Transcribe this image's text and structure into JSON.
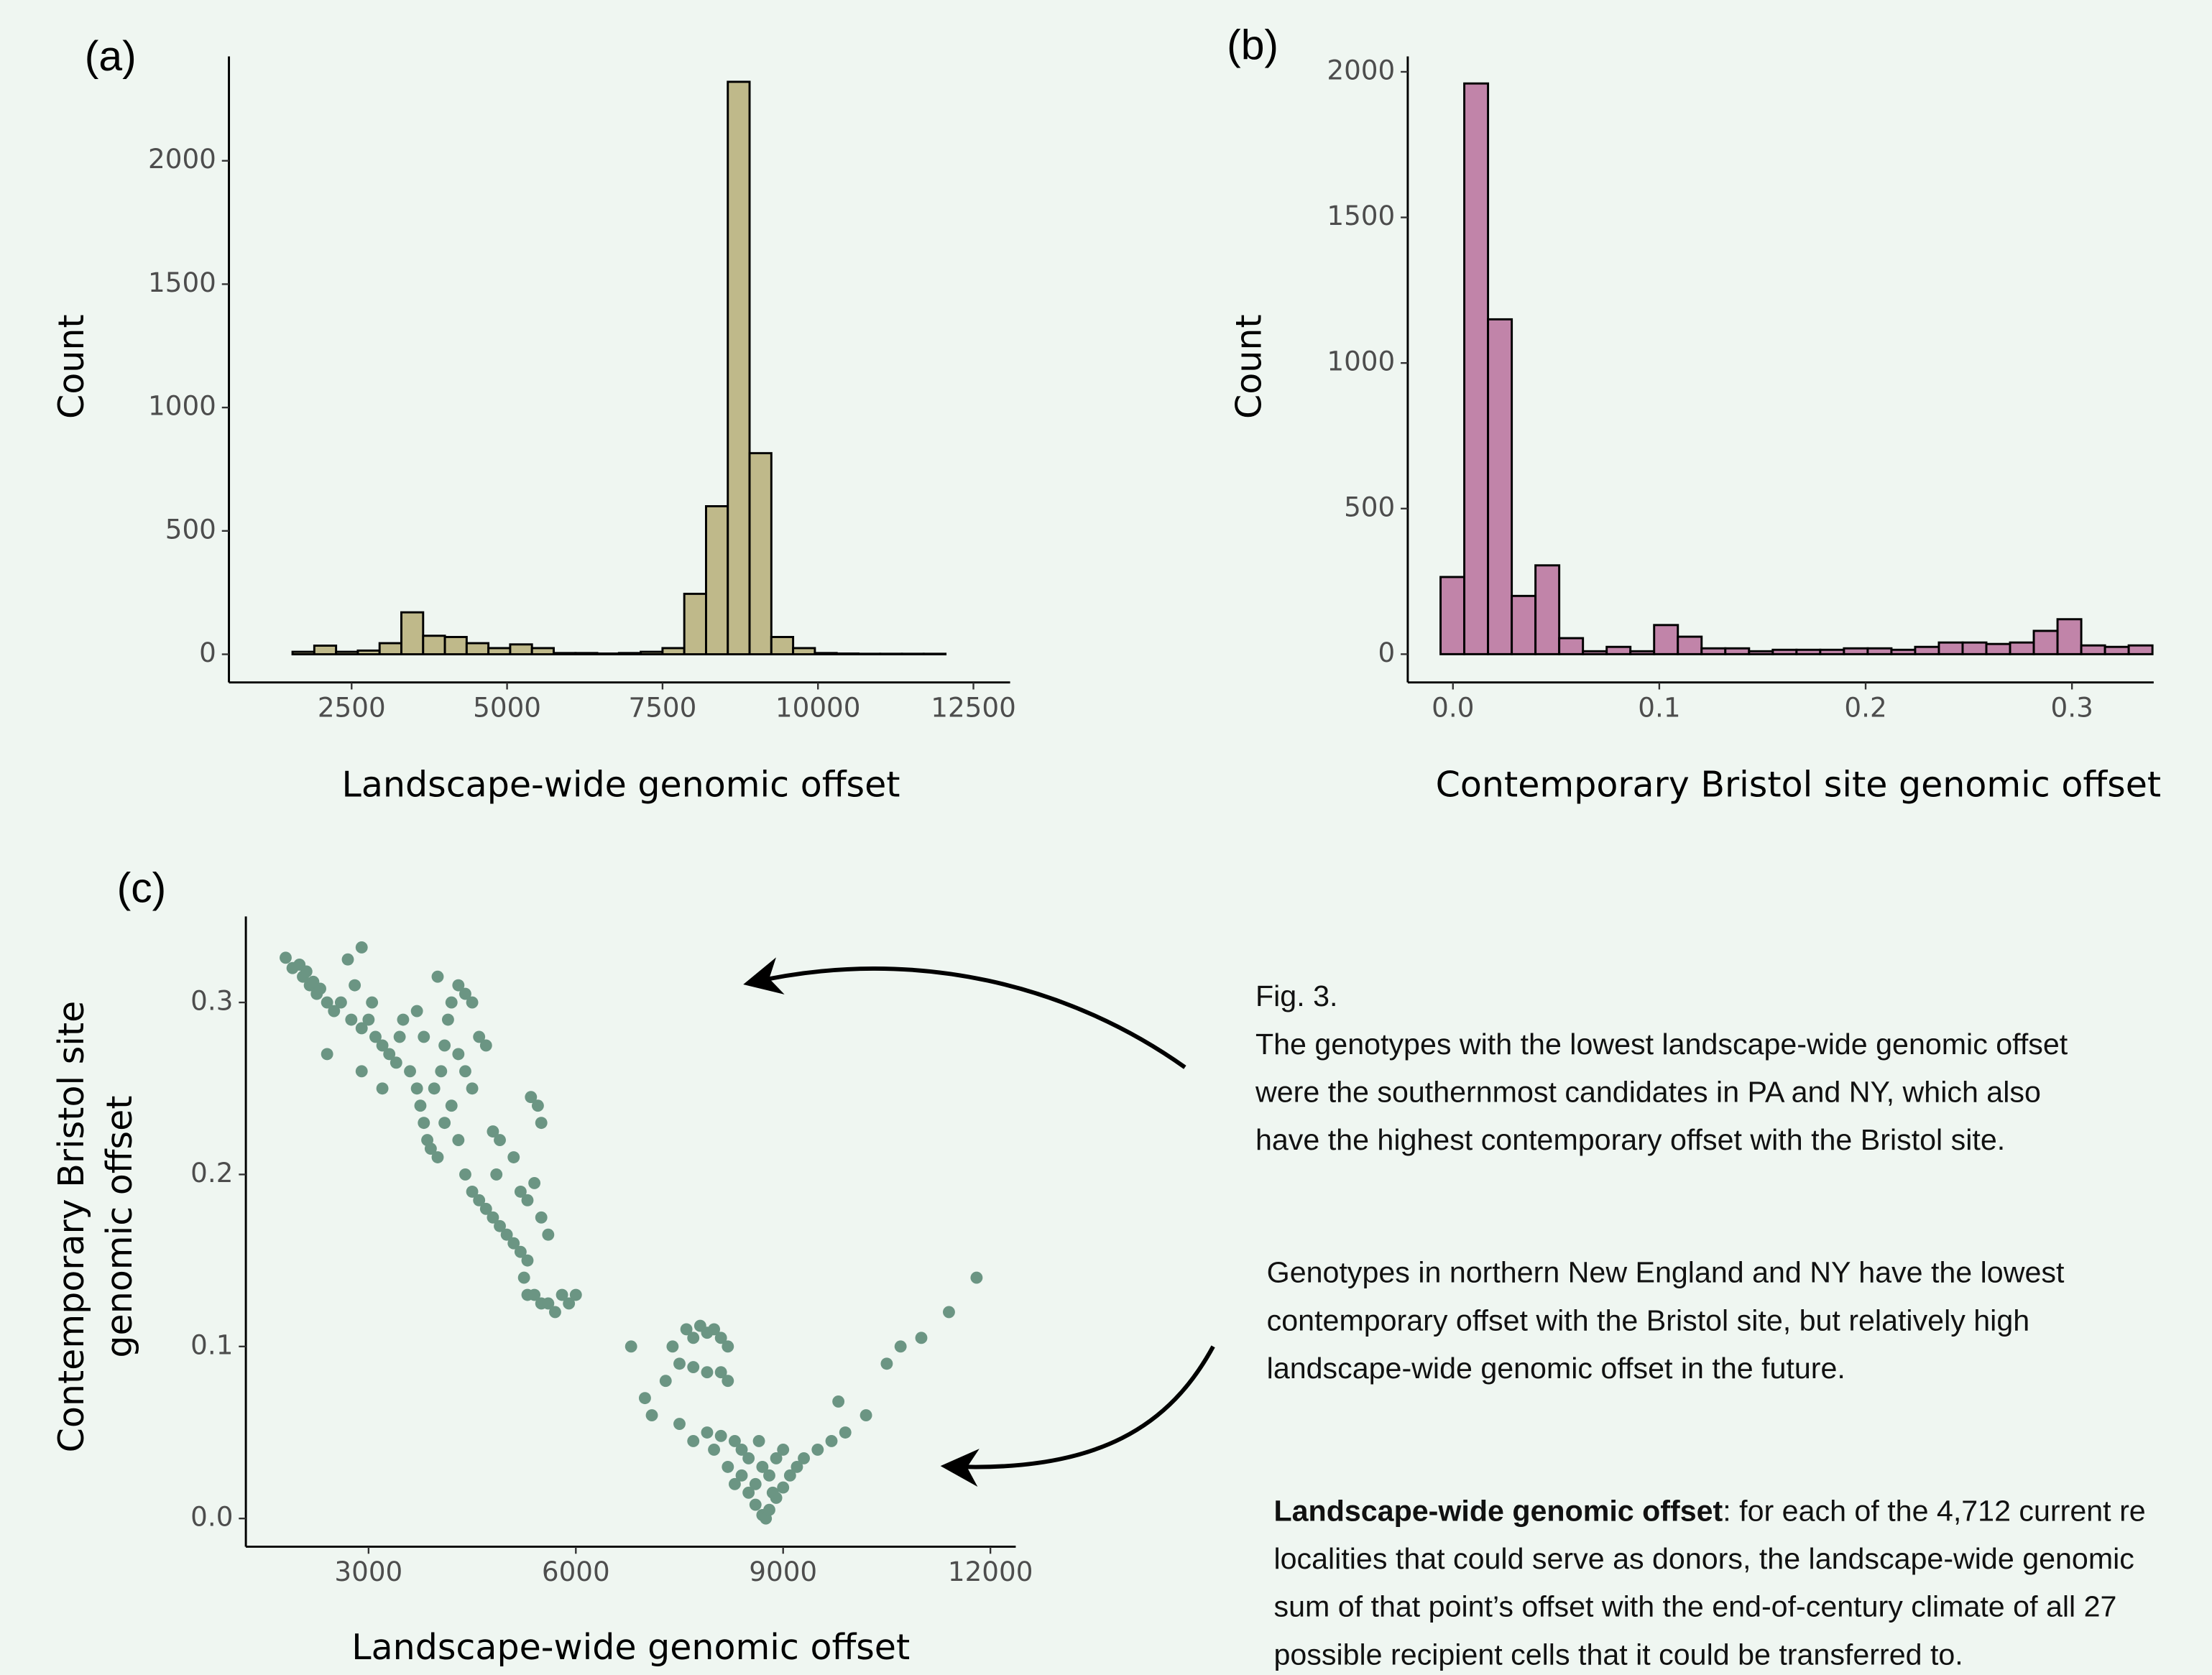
{
  "chart_data": [
    {
      "type": "histogram",
      "panel_label": "(a)",
      "xlabel": "Landscape-wide genomic offset",
      "ylabel": "Count",
      "color": "#bfb98a",
      "bins": [
        1550,
        1900,
        2250,
        2600,
        2950,
        3300,
        3650,
        4000,
        4350,
        4700,
        5050,
        5400,
        5750,
        6100,
        6450,
        6800,
        7150,
        7500,
        7850,
        8200,
        8550,
        8900,
        9250,
        9600,
        9950,
        10300,
        10650,
        11000,
        11350,
        11700,
        12050
      ],
      "counts": [
        10,
        35,
        10,
        15,
        45,
        170,
        75,
        70,
        45,
        25,
        40,
        25,
        5,
        5,
        3,
        5,
        10,
        25,
        245,
        600,
        2320,
        815,
        70,
        25,
        5,
        3,
        2,
        2,
        2,
        2
      ],
      "xlim": [
        527,
        13090
      ],
      "ylim": [
        -114,
        2423
      ],
      "xticks": [
        2500,
        5000,
        7500,
        10000,
        12500
      ],
      "yticks": [
        0,
        500,
        1000,
        1500,
        2000
      ]
    },
    {
      "type": "histogram",
      "panel_label": "(b)",
      "xlabel": "Contemporary Bristol site genomic offset",
      "ylabel": "Count",
      "color": "#c184a9",
      "bins": [
        -0.006,
        0.0055,
        0.017,
        0.0285,
        0.04,
        0.0515,
        0.063,
        0.0745,
        0.086,
        0.0975,
        0.109,
        0.1205,
        0.132,
        0.1435,
        0.155,
        0.1665,
        0.178,
        0.1895,
        0.201,
        0.2125,
        0.224,
        0.2355,
        0.247,
        0.2585,
        0.27,
        0.2815,
        0.293,
        0.3045,
        0.316,
        0.3275,
        0.339
      ],
      "counts": [
        265,
        1960,
        1150,
        200,
        305,
        55,
        10,
        25,
        10,
        100,
        60,
        20,
        20,
        10,
        15,
        15,
        15,
        20,
        20,
        15,
        25,
        40,
        40,
        35,
        40,
        80,
        120,
        30,
        25,
        30
      ],
      "xlim": [
        -0.0219,
        0.3396
      ],
      "ylim": [
        -97,
        2053
      ],
      "xticks": [
        {
          "value": 0,
          "label": "0.0"
        },
        0.1,
        0.2,
        0.3
      ],
      "yticks": [
        0,
        500,
        1000,
        1500,
        2000
      ]
    },
    {
      "type": "scatter",
      "panel_label": "(c)",
      "xlabel": "Landscape-wide genomic offset",
      "ylabel": [
        "Contemporary Bristol site",
        "genomic offset"
      ],
      "color": "#6b9583",
      "x": [
        1800,
        1900,
        2000,
        2050,
        2100,
        2150,
        2200,
        2250,
        2300,
        2400,
        2500,
        2600,
        2700,
        2900,
        2800,
        2750,
        2900,
        3000,
        3100,
        3050,
        3200,
        3300,
        3400,
        3450,
        3500,
        3600,
        3700,
        3750,
        3800,
        3850,
        3900,
        4000,
        3950,
        4050,
        4100,
        4150,
        4200,
        4000,
        4300,
        4400,
        4500,
        4600,
        4700,
        4300,
        4400,
        4500,
        4200,
        4100,
        4300,
        4400,
        4500,
        4600,
        4700,
        4800,
        4900,
        5000,
        5100,
        5200,
        5300,
        5250,
        5300,
        5400,
        5500,
        5600,
        5700,
        5800,
        5900,
        6000,
        5100,
        5200,
        5300,
        5400,
        5500,
        5600,
        5350,
        5450,
        5500,
        4800,
        4900,
        4850,
        3700,
        3800,
        2400,
        2900,
        3200,
        6800,
        7000,
        7100,
        7400,
        7600,
        7700,
        7800,
        7900,
        8000,
        8100,
        8200,
        7500,
        7700,
        7900,
        8100,
        8200,
        7300,
        7500,
        7700,
        7900,
        8100,
        8300,
        8000,
        8200,
        8400,
        8500,
        8600,
        8700,
        8750,
        8800,
        8900,
        9000,
        9100,
        9200,
        9300,
        9500,
        9700,
        9900,
        8600,
        8700,
        8800,
        8900,
        8400,
        8300,
        8500,
        9000,
        9800,
        10200,
        10500,
        10700,
        11000,
        11400,
        11800,
        8650,
        8850
      ],
      "y": [
        0.326,
        0.32,
        0.322,
        0.315,
        0.318,
        0.31,
        0.312,
        0.305,
        0.308,
        0.3,
        0.295,
        0.3,
        0.325,
        0.332,
        0.31,
        0.29,
        0.285,
        0.29,
        0.28,
        0.3,
        0.275,
        0.27,
        0.265,
        0.28,
        0.29,
        0.26,
        0.25,
        0.24,
        0.23,
        0.22,
        0.215,
        0.21,
        0.25,
        0.26,
        0.275,
        0.29,
        0.3,
        0.315,
        0.31,
        0.305,
        0.3,
        0.28,
        0.275,
        0.27,
        0.26,
        0.25,
        0.24,
        0.23,
        0.22,
        0.2,
        0.19,
        0.185,
        0.18,
        0.175,
        0.17,
        0.165,
        0.16,
        0.155,
        0.15,
        0.14,
        0.13,
        0.13,
        0.125,
        0.125,
        0.12,
        0.13,
        0.125,
        0.13,
        0.21,
        0.19,
        0.185,
        0.195,
        0.175,
        0.165,
        0.245,
        0.24,
        0.23,
        0.225,
        0.22,
        0.2,
        0.295,
        0.28,
        0.27,
        0.26,
        0.25,
        0.1,
        0.07,
        0.06,
        0.1,
        0.11,
        0.105,
        0.112,
        0.108,
        0.11,
        0.105,
        0.1,
        0.09,
        0.088,
        0.085,
        0.085,
        0.08,
        0.08,
        0.055,
        0.045,
        0.05,
        0.048,
        0.045,
        0.04,
        0.03,
        0.025,
        0.015,
        0.008,
        0.002,
        0.0,
        0.005,
        0.012,
        0.018,
        0.025,
        0.03,
        0.035,
        0.04,
        0.045,
        0.05,
        0.02,
        0.03,
        0.025,
        0.035,
        0.04,
        0.02,
        0.035,
        0.04,
        0.068,
        0.06,
        0.09,
        0.1,
        0.105,
        0.12,
        0.14,
        0.045,
        0.015
      ],
      "xlim": [
        1224,
        12367
      ],
      "ylim": [
        -0.0164,
        0.35
      ],
      "xticks": [
        3000,
        6000,
        9000,
        12000
      ],
      "yticks": [
        {
          "value": 0,
          "label": "0.0"
        },
        0.1,
        0.2,
        0.3
      ]
    }
  ],
  "caption": {
    "label": "Fig. 3.",
    "lines": [
      "The genotypes with the lowest landscape-wide genomic offset",
      "were the southernmost candidates in PA and NY, which also",
      "have the highest contemporary offset with the Bristol site."
    ]
  },
  "note": {
    "lines": [
      "Genotypes in northern New England and NY have the lowest",
      "contemporary offset with the Bristol site, but relatively high",
      "landscape-wide genomic offset in the future."
    ]
  },
  "definition": {
    "term": "Landscape-wide genomic offset",
    "lines": [
      ": for each of the 4,712 current re",
      "localities that could serve as donors, the landscape-wide genomic",
      "sum of that point’s offset with the end-of-century climate of all 27",
      "possible recipient cells that it could be transferred to."
    ]
  }
}
